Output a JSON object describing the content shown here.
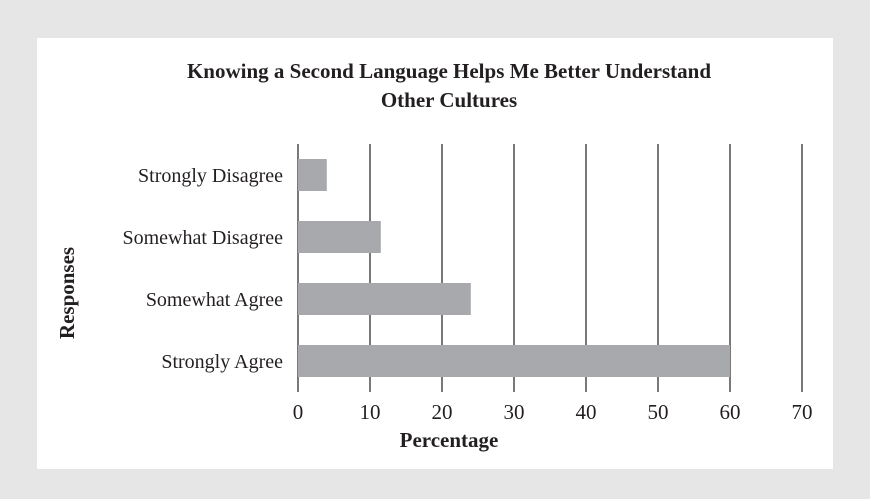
{
  "chart_data": {
    "type": "bar",
    "orientation": "horizontal",
    "title_lines": [
      "Knowing a Second Language Helps Me Better Understand",
      "Other Cultures"
    ],
    "categories": [
      "Strongly Disagree",
      "Somewhat Disagree",
      "Somewhat Agree",
      "Strongly Agree"
    ],
    "values": [
      4,
      11.5,
      24,
      60
    ],
    "xlabel": "Percentage",
    "ylabel": "Responses",
    "xlim": [
      0,
      70
    ],
    "xticks": [
      "0",
      "10",
      "20",
      "30",
      "40",
      "50",
      "60",
      "70"
    ],
    "grid": "vertical",
    "legend": "none",
    "colors": {
      "bar": "#a7a9ac",
      "grid": "#231f20",
      "text": "#231f20",
      "panel": "#ffffff",
      "background": "#e6e6e7"
    }
  }
}
